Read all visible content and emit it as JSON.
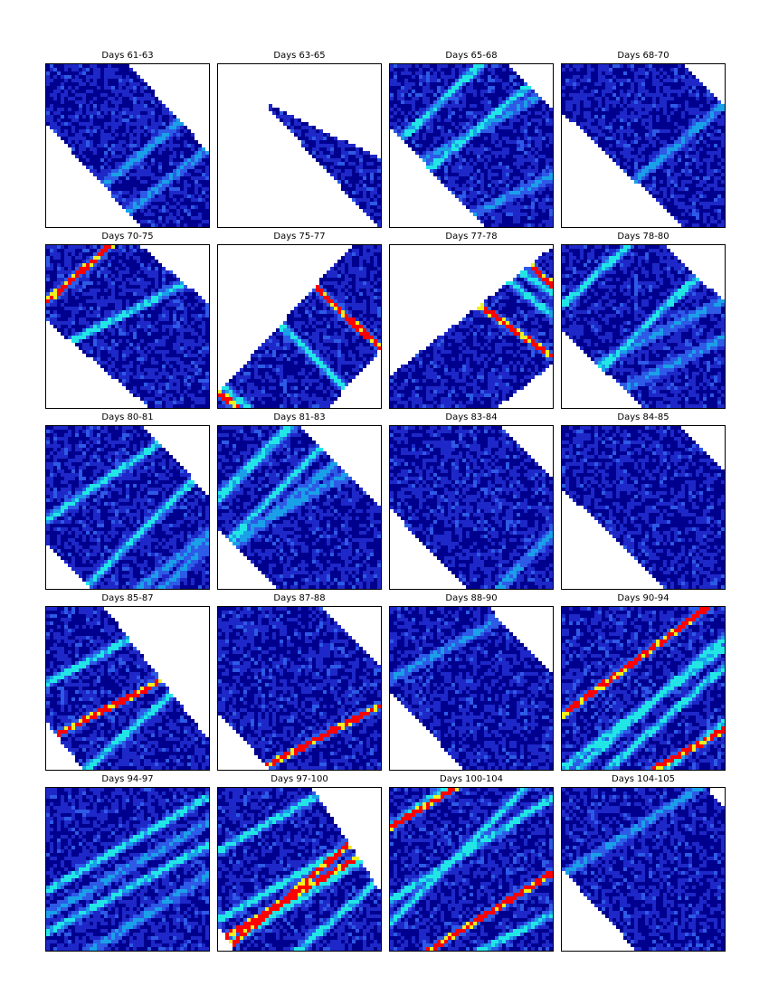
{
  "colors": {
    "background": "#ffffff",
    "frame": "#000000",
    "scale": [
      "#00008f",
      "#1e28c8",
      "#2d5ae6",
      "#1aa0e8",
      "#22e6e6",
      "#f0f020",
      "#ff0000"
    ]
  },
  "chart_data": {
    "type": "heatmap",
    "layout": "grid",
    "rows": 5,
    "cols": 4,
    "panels": [
      {
        "title": "Days 61-63",
        "coverage": "band-lower-left-open",
        "streaks": 2,
        "intensity": "low"
      },
      {
        "title": "Days 63-65",
        "coverage": "narrow-wedge",
        "streaks": 0,
        "intensity": "low"
      },
      {
        "title": "Days 65-68",
        "coverage": "band",
        "streaks": 4,
        "intensity": "medium"
      },
      {
        "title": "Days 68-70",
        "coverage": "band",
        "streaks": 1,
        "intensity": "low"
      },
      {
        "title": "Days 70-75",
        "coverage": "band",
        "streaks": 2,
        "intensity": "high"
      },
      {
        "title": "Days 75-77",
        "coverage": "rotated-band",
        "streaks": 4,
        "intensity": "high"
      },
      {
        "title": "Days 77-78",
        "coverage": "rotated-band",
        "streaks": 4,
        "intensity": "high"
      },
      {
        "title": "Days 78-80",
        "coverage": "band",
        "streaks": 4,
        "intensity": "medium"
      },
      {
        "title": "Days 80-81",
        "coverage": "band",
        "streaks": 4,
        "intensity": "medium"
      },
      {
        "title": "Days 81-83",
        "coverage": "band",
        "streaks": 4,
        "intensity": "medium"
      },
      {
        "title": "Days 83-84",
        "coverage": "band",
        "streaks": 1,
        "intensity": "low"
      },
      {
        "title": "Days 84-85",
        "coverage": "band",
        "streaks": 0,
        "intensity": "low"
      },
      {
        "title": "Days 85-87",
        "coverage": "band-lower-left",
        "streaks": 3,
        "intensity": "high"
      },
      {
        "title": "Days 87-88",
        "coverage": "band",
        "streaks": 1,
        "intensity": "high"
      },
      {
        "title": "Days 88-90",
        "coverage": "band",
        "streaks": 1,
        "intensity": "low"
      },
      {
        "title": "Days 90-94",
        "coverage": "full",
        "streaks": 6,
        "intensity": "high"
      },
      {
        "title": "Days 94-97",
        "coverage": "full",
        "streaks": 4,
        "intensity": "medium"
      },
      {
        "title": "Days 97-100",
        "coverage": "band",
        "streaks": 6,
        "intensity": "high"
      },
      {
        "title": "Days 100-104",
        "coverage": "full",
        "streaks": 6,
        "intensity": "high"
      },
      {
        "title": "Days 104-105",
        "coverage": "band",
        "streaks": 1,
        "intensity": "low"
      }
    ]
  }
}
